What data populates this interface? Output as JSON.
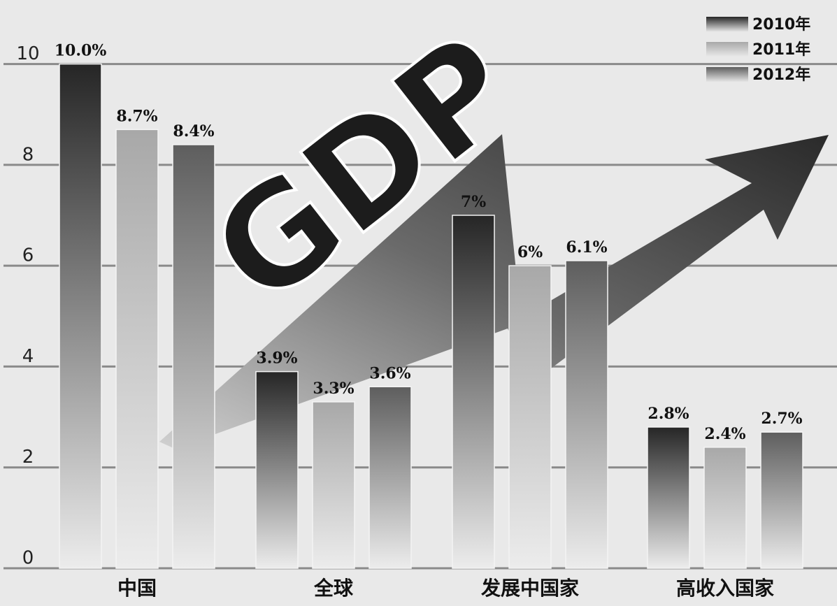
{
  "chart_data": {
    "type": "bar",
    "annotation": "GDP",
    "categories": [
      "中国",
      "全球",
      "发展中国家",
      "高收入国家"
    ],
    "series": [
      {
        "name": "2010年",
        "color": "#262626",
        "values": [
          10.0,
          3.9,
          7,
          2.8
        ],
        "value_labels": [
          "10.0%",
          "3.9%",
          "7%",
          "2.8%"
        ]
      },
      {
        "name": "2011年",
        "color": "#a8a8a8",
        "values": [
          8.7,
          3.3,
          6,
          2.4
        ],
        "value_labels": [
          "8.7%",
          "3.3%",
          "6%",
          "2.4%"
        ]
      },
      {
        "name": "2012年",
        "color": "#5e5e5e",
        "values": [
          8.4,
          3.6,
          6.1,
          2.7
        ],
        "value_labels": [
          "8.4%",
          "3.6%",
          "6.1%",
          "2.7%"
        ]
      }
    ],
    "ylim": [
      0,
      11.2
    ],
    "yticks": [
      0,
      2,
      4,
      6,
      8,
      10
    ],
    "grid": true,
    "legend": "top-right"
  }
}
